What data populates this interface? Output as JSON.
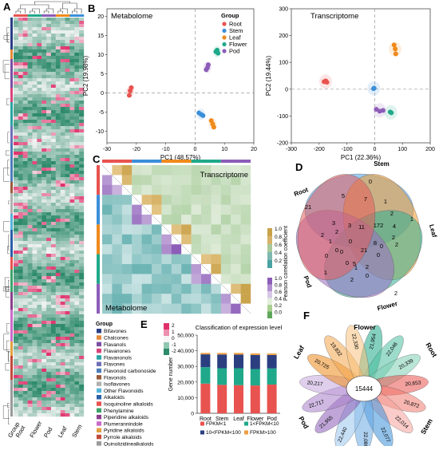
{
  "panels": {
    "A": "A",
    "B": "B",
    "C": "C",
    "D": "D",
    "E": "E",
    "F": "F"
  },
  "colors": {
    "Root": "#e8534f",
    "Stem": "#3b8fd9",
    "Leaf": "#ef8a1c",
    "Flower": "#1fa98a",
    "Pod": "#8c5db8",
    "heat_low": "#2e8b6b",
    "heat_high": "#e0306c",
    "heat_mid": "#f5f5f5"
  },
  "heatmapA": {
    "group_label": "Group",
    "x_labels": [
      "Root",
      "Flower",
      "Pod",
      "Leaf",
      "Stem"
    ]
  },
  "pcaMetabolome": {
    "title": "Metabolome",
    "xlabel": "PC1 (48.57%)",
    "ylabel": "PC2 (19.98%)",
    "xticks": [
      "-30",
      "-20",
      "-10",
      "0",
      "10",
      "20"
    ],
    "yticks": [
      "-10",
      "-5",
      "0",
      "5",
      "10",
      "15",
      "20"
    ],
    "legend_title": "Group",
    "legend": [
      "Root",
      "Stem",
      "Leaf",
      "Flower",
      "Pod"
    ]
  },
  "pcaTranscriptome": {
    "title": "Transcriptome",
    "xlabel": "PC1 (22.36%)",
    "ylabel": "PC2 (19.44%)",
    "xticks": [
      "-300",
      "-200",
      "-100",
      "0",
      "100",
      "200"
    ],
    "yticks": [
      "-200",
      "-100",
      "0",
      "100",
      "200",
      "300"
    ]
  },
  "corrC": {
    "label_top": "Transcriptome",
    "label_bottom": "Metabolome",
    "scale_label": "Pearson correlation coefficient",
    "scale_top": [
      "1.0",
      "0.8",
      "0.6",
      "0.4",
      "0.2"
    ],
    "scale_bottom": [
      "1.0",
      "0.8",
      "0.6",
      "0.4",
      "0.2",
      "0.0"
    ]
  },
  "heatLegend": {
    "title": "Group",
    "ticks": [
      "2",
      "1",
      "0",
      "-1",
      "-2"
    ]
  },
  "classes": [
    {
      "name": "Bifavones",
      "color": "#2a3f85"
    },
    {
      "name": "Chalcones",
      "color": "#e58a3a"
    },
    {
      "name": "Flavanols",
      "color": "#7a4fa3"
    },
    {
      "name": "Flavanones",
      "color": "#d6447a"
    },
    {
      "name": "Flavanonols",
      "color": "#29a3a3"
    },
    {
      "name": "Flavones",
      "color": "#6f6fb8"
    },
    {
      "name": "Flavonoid carbonoside",
      "color": "#4d7db8"
    },
    {
      "name": "Flavonols",
      "color": "#9a5a3a"
    },
    {
      "name": "Isoflavones",
      "color": "#b0b0b0"
    },
    {
      "name": "Other Flavonoids",
      "color": "#55b3d9"
    },
    {
      "name": "Alkaloids",
      "color": "#2b5fa6"
    },
    {
      "name": "Isoquinoline alkaloids",
      "color": "#e8534f"
    },
    {
      "name": "Phenylamine",
      "color": "#3da36b"
    },
    {
      "name": "Piperidine alkaloids",
      "color": "#8c3f8c"
    },
    {
      "name": "Plumerannindole",
      "color": "#c96ac9"
    },
    {
      "name": "Pyridine alkaloids",
      "color": "#e0a040"
    },
    {
      "name": "Pyrrole alkaloids",
      "color": "#c24a3a"
    },
    {
      "name": "Quinolizidinealkaloids",
      "color": "#9a9a9a"
    }
  ],
  "chart_data": [
    {
      "type": "scatter",
      "title": "Metabolome",
      "xlabel": "PC1 (48.57%)",
      "ylabel": "PC2 (19.98%)",
      "xlim": [
        -30,
        20
      ],
      "ylim": [
        -13,
        22
      ],
      "series": [
        {
          "name": "Root",
          "x": [
            -22.4,
            -22.1,
            -21.7
          ],
          "y": [
            -0.6,
            0.6,
            1.4
          ]
        },
        {
          "name": "Stem",
          "x": [
            1.3,
            2.1,
            2.7
          ],
          "y": [
            -5.2,
            -5.6,
            -5.9
          ]
        },
        {
          "name": "Leaf",
          "x": [
            5.5,
            6.0,
            6.4
          ],
          "y": [
            -7.2,
            -8.1,
            -8.9
          ]
        },
        {
          "name": "Flower",
          "x": [
            7.1,
            7.5,
            7.8
          ],
          "y": [
            10.8,
            11.2,
            10.4
          ]
        },
        {
          "name": "Pod",
          "x": [
            3.8,
            4.2,
            4.5
          ],
          "y": [
            6.1,
            6.6,
            7.4
          ]
        }
      ]
    },
    {
      "type": "scatter",
      "title": "Transcriptome",
      "xlabel": "PC1 (22.36%)",
      "ylabel": "PC2 (19.44%)",
      "xlim": [
        -300,
        200
      ],
      "ylim": [
        -200,
        300
      ],
      "series": [
        {
          "name": "Root",
          "x": [
            -182,
            -176,
            -172
          ],
          "y": [
            28,
            31,
            26
          ]
        },
        {
          "name": "Stem",
          "x": [
            -4,
            -2
          ],
          "y": [
            2,
            4
          ]
        },
        {
          "name": "Leaf",
          "x": [
            70,
            74,
            76
          ],
          "y": [
            165,
            150,
            132
          ]
        },
        {
          "name": "Flower",
          "x": [
            56,
            60
          ],
          "y": [
            -85,
            -88
          ]
        },
        {
          "name": "Pod",
          "x": [
            6,
            18,
            30
          ],
          "y": [
            -75,
            -82,
            -79
          ]
        }
      ]
    },
    {
      "type": "bar",
      "title": "Classification of expression level",
      "categories": [
        "Root",
        "Stem",
        "Leaf",
        "Flower",
        "Pod"
      ],
      "ylabel": "Gene number",
      "ylim": [
        0,
        50000
      ],
      "yticks": [
        "0",
        "10,000",
        "20,000",
        "30,000",
        "40,000",
        "50,000"
      ],
      "series": [
        {
          "name": "FPKM<1",
          "color": "#e8534f",
          "values": [
            19000,
            18200,
            18000,
            17800,
            18400
          ]
        },
        {
          "name": "1<FPKM<10",
          "color": "#1fa98a",
          "values": [
            10500,
            10600,
            10800,
            10500,
            10300
          ]
        },
        {
          "name": "10<FPKM<100",
          "color": "#2b3f80",
          "values": [
            8200,
            8800,
            8700,
            9000,
            8600
          ]
        },
        {
          "name": "FPKM>100",
          "color": "#f0a040",
          "values": [
            900,
            1000,
            1100,
            1000,
            950
          ]
        }
      ]
    },
    {
      "type": "table",
      "title": "Venn",
      "sets": [
        "Root",
        "Stem",
        "Leaf",
        "Flower",
        "Pod"
      ],
      "values": [
        "21",
        "0",
        "1",
        "2",
        "1",
        "5",
        "7",
        "1",
        "2",
        "2",
        "3",
        "3",
        "11",
        "172",
        "4",
        "2",
        "2",
        "1",
        "0",
        "0",
        "0",
        "0",
        "5",
        "2",
        "21",
        "8",
        "0",
        "0",
        "2",
        "0",
        "2",
        "1",
        "0"
      ]
    },
    {
      "type": "table",
      "title": "Flower petals",
      "center": "15444",
      "sets": [
        "Flower",
        "Root",
        "Stem",
        "Pod",
        "Leaf"
      ],
      "values": [
        "21,954",
        "22,046",
        "20,339",
        "20,653",
        "20,872",
        "22,014",
        "22,077",
        "22,086",
        "22,440",
        "21,955",
        "22,717",
        "20,217",
        "20,725",
        "19,832",
        "22,330"
      ]
    }
  ]
}
